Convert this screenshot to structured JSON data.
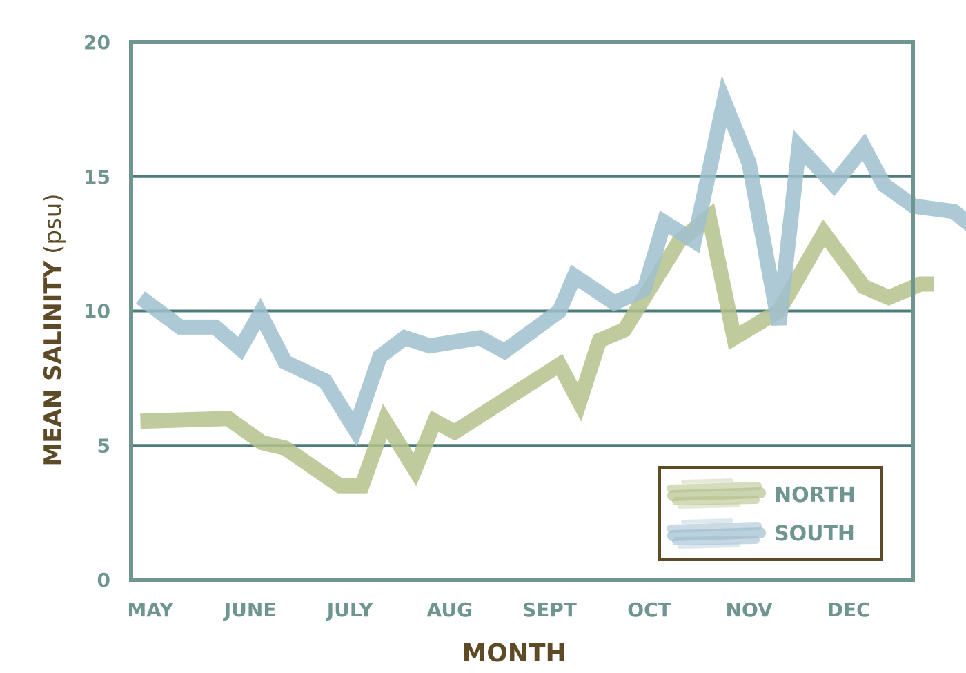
{
  "chart_data": {
    "type": "line",
    "title": "",
    "xlabel": "MONTH",
    "ylabel": "MEAN SALINITY",
    "ylabel_unit": "(psu)",
    "ylim": [
      0,
      20
    ],
    "yticks": [
      0,
      5,
      10,
      15,
      20
    ],
    "ytick_labels": [
      "0",
      "5",
      "10",
      "15",
      "20"
    ],
    "xlim": [
      0,
      8.3
    ],
    "xticks": [
      0,
      1,
      2,
      3,
      4,
      5,
      6,
      7
    ],
    "categories": [
      "MAY",
      "JUNE",
      "JULY",
      "AUG",
      "SEPT",
      "OCT",
      "NOV",
      "DEC"
    ],
    "grid": "horizontal",
    "legend_position": "bottom-right",
    "series": [
      {
        "name": "NORTH",
        "color": "#b5c28c",
        "points": [
          [
            -0.1,
            5.9
          ],
          [
            0.78,
            6.0
          ],
          [
            1.12,
            5.1
          ],
          [
            1.35,
            4.9
          ],
          [
            1.9,
            3.5
          ],
          [
            2.12,
            3.5
          ],
          [
            2.35,
            5.9
          ],
          [
            2.65,
            4.1
          ],
          [
            2.85,
            5.9
          ],
          [
            3.05,
            5.5
          ],
          [
            4.1,
            8.0
          ],
          [
            4.3,
            6.6
          ],
          [
            4.5,
            8.9
          ],
          [
            4.75,
            9.3
          ],
          [
            5.3,
            12.6
          ],
          [
            5.6,
            13.5
          ],
          [
            5.85,
            9.0
          ],
          [
            6.3,
            10.0
          ],
          [
            6.75,
            12.9
          ],
          [
            7.15,
            10.9
          ],
          [
            7.4,
            10.5
          ],
          [
            7.72,
            11.0
          ],
          [
            7.85,
            11.0
          ]
        ]
      },
      {
        "name": "SOUTH",
        "color": "#9fbfcf",
        "points": [
          [
            -0.1,
            10.5
          ],
          [
            0.3,
            9.4
          ],
          [
            0.65,
            9.4
          ],
          [
            0.9,
            8.6
          ],
          [
            1.1,
            9.9
          ],
          [
            1.35,
            8.1
          ],
          [
            1.75,
            7.4
          ],
          [
            2.05,
            5.6
          ],
          [
            2.3,
            8.3
          ],
          [
            2.55,
            9.0
          ],
          [
            2.8,
            8.7
          ],
          [
            3.3,
            9.0
          ],
          [
            3.55,
            8.5
          ],
          [
            4.1,
            10.0
          ],
          [
            4.25,
            11.3
          ],
          [
            4.65,
            10.3
          ],
          [
            4.95,
            10.8
          ],
          [
            5.15,
            13.3
          ],
          [
            5.45,
            12.6
          ],
          [
            5.75,
            17.8
          ],
          [
            6.0,
            15.5
          ],
          [
            6.3,
            9.5
          ],
          [
            6.5,
            16.1
          ],
          [
            6.85,
            14.7
          ],
          [
            7.15,
            16.1
          ],
          [
            7.35,
            14.7
          ],
          [
            7.65,
            13.9
          ],
          [
            8.05,
            13.7
          ],
          [
            8.22,
            13.2
          ]
        ]
      }
    ],
    "frame_color": "#6f9591",
    "grid_color": "#4e7c7a",
    "legend_border_color": "#5e4a26"
  }
}
